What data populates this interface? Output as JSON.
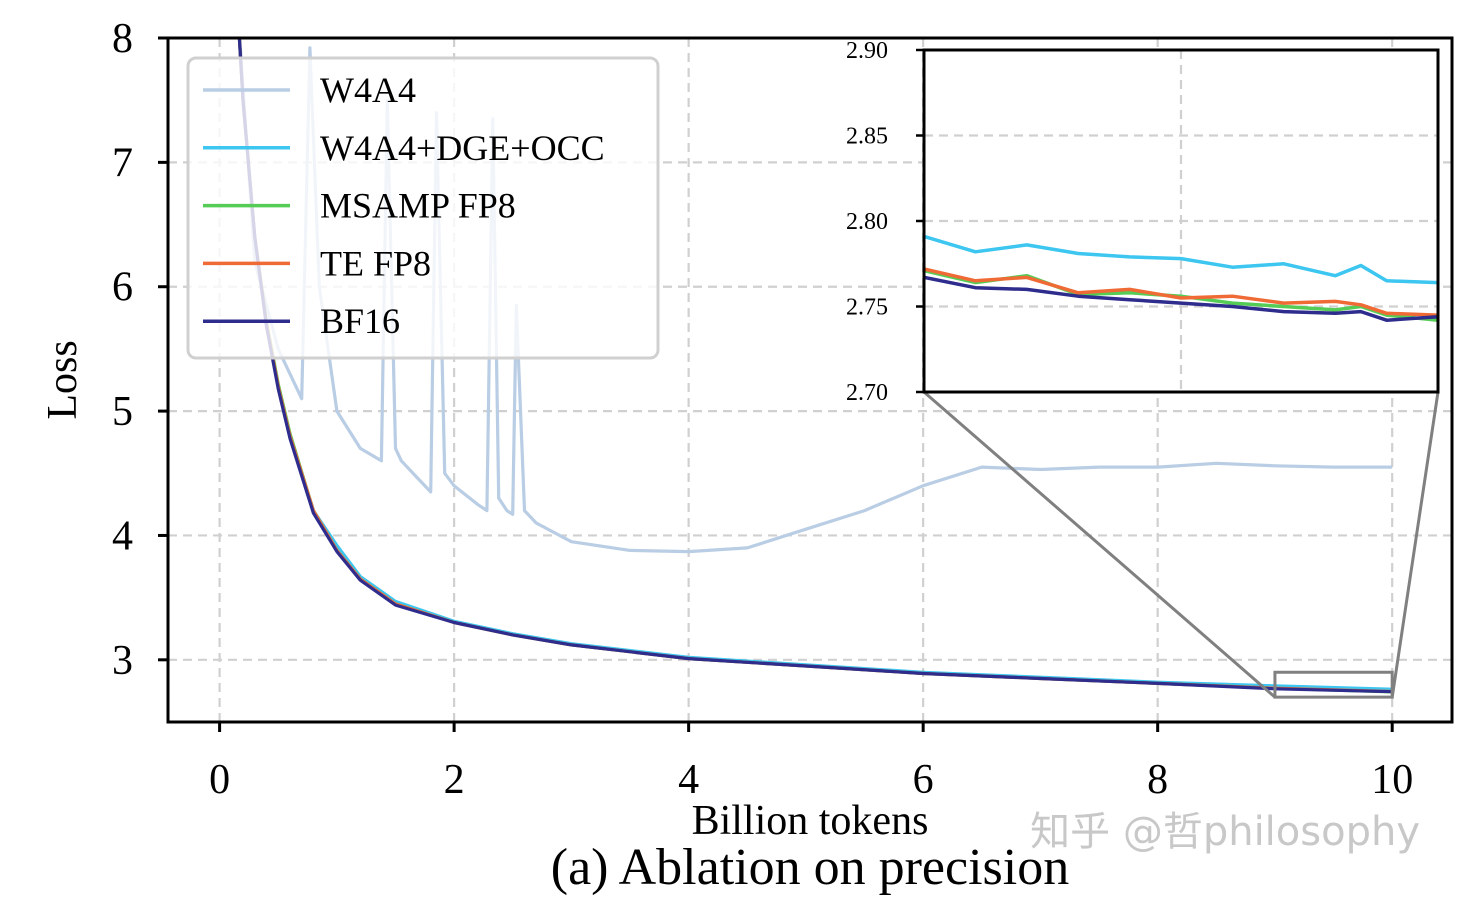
{
  "chart_data": {
    "type": "line",
    "title": "",
    "caption": "(a) Ablation on precision",
    "xlabel": "Billion tokens",
    "ylabel": "Loss",
    "xlim": [
      -0.44,
      10.51
    ],
    "ylim": [
      2.5,
      8
    ],
    "xticks": [
      "0",
      "2",
      "4",
      "6",
      "8",
      "10"
    ],
    "yticks": [
      "3",
      "4",
      "5",
      "6",
      "7",
      "8"
    ],
    "grid": true,
    "legend_position": "top-left",
    "series": [
      {
        "name": "W4A4",
        "color": "#b9cde4",
        "x": [
          0.15,
          0.3,
          0.5,
          0.7,
          0.77,
          0.85,
          1.0,
          1.2,
          1.38,
          1.43,
          1.5,
          1.55,
          1.7,
          1.8,
          1.85,
          1.92,
          2.0,
          2.2,
          2.28,
          2.33,
          2.38,
          2.45,
          2.5,
          2.53,
          2.6,
          2.7,
          3.0,
          3.5,
          4.0,
          4.5,
          5.0,
          5.5,
          6.0,
          6.5,
          7.0,
          7.5,
          8.0,
          8.5,
          9.0,
          9.5,
          10.0
        ],
        "y": [
          8.3,
          6.2,
          5.5,
          5.1,
          7.92,
          6.0,
          5.0,
          4.7,
          4.6,
          7.5,
          4.7,
          4.6,
          4.45,
          4.35,
          7.4,
          4.5,
          4.4,
          4.25,
          4.2,
          7.35,
          4.3,
          4.2,
          4.17,
          5.85,
          4.2,
          4.1,
          3.95,
          3.88,
          3.87,
          3.9,
          4.05,
          4.2,
          4.4,
          4.55,
          4.53,
          4.55,
          4.55,
          4.58,
          4.56,
          4.55,
          4.55
        ]
      },
      {
        "name": "W4A4+DGE+OCC",
        "color": "#3cc6f0",
        "x": [
          0.15,
          0.2,
          0.3,
          0.4,
          0.5,
          0.6,
          0.8,
          1.0,
          1.2,
          1.5,
          2.0,
          2.5,
          3.0,
          4.0,
          5.0,
          6.0,
          7.0,
          8.0,
          9.0,
          10.0
        ],
        "y": [
          8.3,
          7.5,
          6.4,
          5.7,
          5.2,
          4.8,
          4.2,
          3.92,
          3.67,
          3.47,
          3.31,
          3.21,
          3.13,
          3.02,
          2.96,
          2.9,
          2.86,
          2.82,
          2.79,
          2.764
        ]
      },
      {
        "name": "MSAMP FP8",
        "color": "#55cc55",
        "x": [
          0.15,
          0.2,
          0.3,
          0.4,
          0.5,
          0.6,
          0.8,
          1.0,
          1.2,
          1.5,
          2.0,
          2.5,
          3.0,
          4.0,
          5.0,
          6.0,
          7.0,
          8.0,
          9.0,
          10.0
        ],
        "y": [
          8.3,
          7.5,
          6.4,
          5.72,
          5.22,
          4.82,
          4.2,
          3.88,
          3.65,
          3.45,
          3.3,
          3.2,
          3.12,
          3.01,
          2.95,
          2.89,
          2.85,
          2.81,
          2.771,
          2.742
        ]
      },
      {
        "name": "TE FP8",
        "color": "#f06a35",
        "x": [
          0.15,
          0.2,
          0.3,
          0.4,
          0.5,
          0.6,
          0.8,
          1.0,
          1.2,
          1.5,
          2.0,
          2.5,
          3.0,
          4.0,
          5.0,
          6.0,
          7.0,
          8.0,
          9.0,
          10.0
        ],
        "y": [
          8.3,
          7.5,
          6.4,
          5.7,
          5.2,
          4.8,
          4.2,
          3.88,
          3.65,
          3.45,
          3.3,
          3.2,
          3.12,
          3.01,
          2.95,
          2.89,
          2.85,
          2.81,
          2.772,
          2.745
        ]
      },
      {
        "name": "BF16",
        "color": "#2e2c8c",
        "x": [
          0.15,
          0.2,
          0.3,
          0.4,
          0.5,
          0.6,
          0.8,
          1.0,
          1.2,
          1.5,
          2.0,
          2.5,
          3.0,
          4.0,
          5.0,
          6.0,
          7.0,
          8.0,
          9.0,
          10.0
        ],
        "y": [
          8.3,
          7.5,
          6.4,
          5.68,
          5.18,
          4.78,
          4.18,
          3.87,
          3.64,
          3.44,
          3.3,
          3.2,
          3.12,
          3.01,
          2.95,
          2.89,
          2.85,
          2.81,
          2.767,
          2.744
        ]
      }
    ],
    "inset": {
      "xlim": [
        9,
        10
      ],
      "ylim": [
        2.7,
        2.9
      ],
      "yticks": [
        "2.70",
        "2.75",
        "2.80",
        "2.85",
        "2.90"
      ],
      "x": [
        9.0,
        9.1,
        9.2,
        9.3,
        9.4,
        9.5,
        9.6,
        9.7,
        9.8,
        9.85,
        9.9,
        10.0
      ],
      "series": [
        {
          "name": "W4A4+DGE+OCC",
          "y": [
            2.791,
            2.782,
            2.786,
            2.781,
            2.779,
            2.778,
            2.773,
            2.775,
            2.768,
            2.774,
            2.765,
            2.764
          ]
        },
        {
          "name": "MSAMP FP8",
          "y": [
            2.771,
            2.764,
            2.768,
            2.757,
            2.758,
            2.756,
            2.752,
            2.75,
            2.748,
            2.75,
            2.745,
            2.742
          ]
        },
        {
          "name": "TE FP8",
          "y": [
            2.772,
            2.765,
            2.767,
            2.758,
            2.76,
            2.755,
            2.756,
            2.752,
            2.753,
            2.751,
            2.746,
            2.745
          ]
        },
        {
          "name": "BF16",
          "y": [
            2.767,
            2.761,
            2.76,
            2.756,
            2.754,
            2.752,
            2.75,
            2.747,
            2.746,
            2.747,
            2.742,
            2.744
          ]
        }
      ]
    }
  },
  "watermark": "知乎 @哲philosophy"
}
